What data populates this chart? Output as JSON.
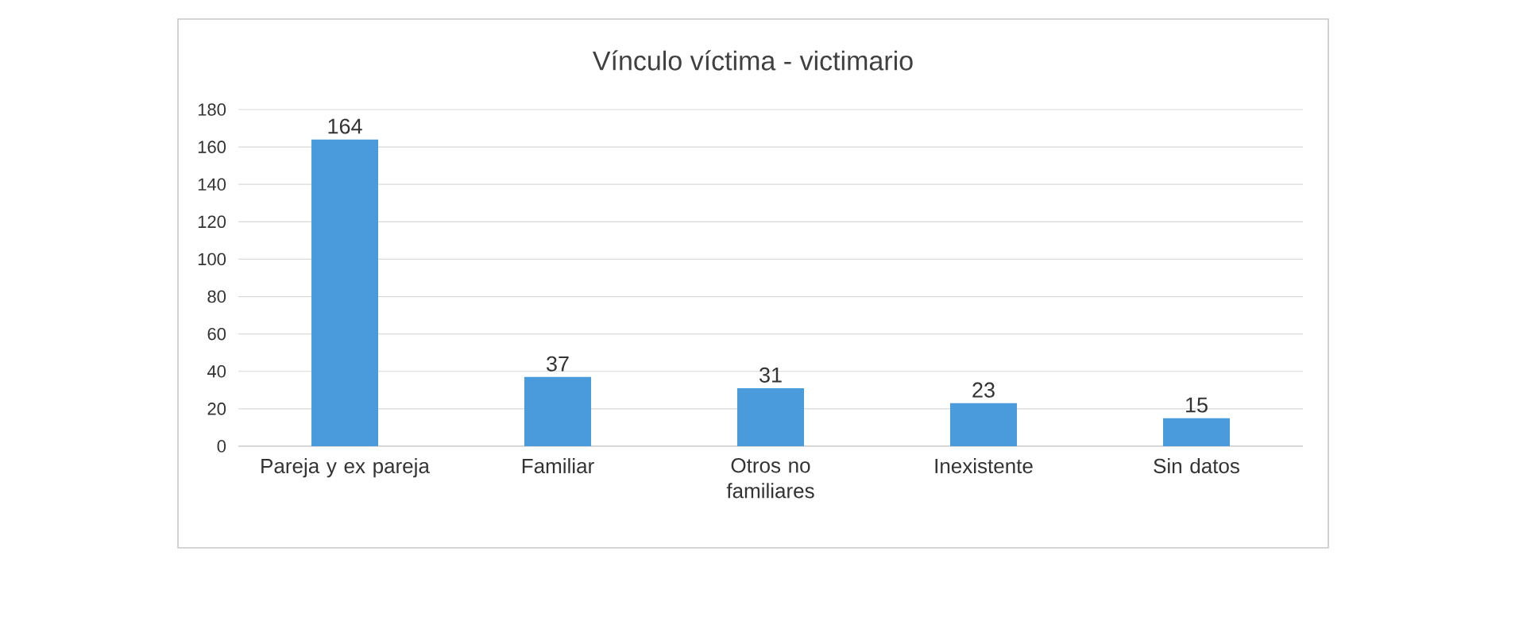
{
  "chart_data": {
    "type": "bar",
    "title": "Vínculo víctima - victimario",
    "categories": [
      "Pareja y ex pareja",
      "Familiar",
      "Otros no familiares",
      "Inexistente",
      "Sin datos"
    ],
    "values": [
      164,
      37,
      31,
      23,
      15
    ],
    "color": "#4a9bdc",
    "ylim": [
      0,
      180
    ],
    "yticks": [
      0,
      20,
      40,
      60,
      80,
      100,
      120,
      140,
      160,
      180
    ],
    "grid": "y",
    "data_labels": true
  }
}
